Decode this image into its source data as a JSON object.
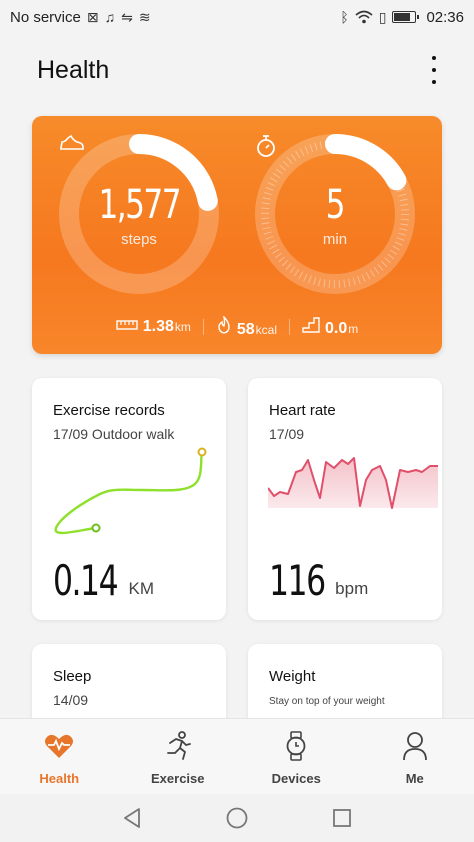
{
  "status_bar": {
    "carrier": "No service",
    "time": "02:36"
  },
  "header": {
    "title": "Health"
  },
  "activity": {
    "steps": {
      "value": "1,577",
      "unit": "steps",
      "goal_fraction": 0.22
    },
    "minutes": {
      "value": "5",
      "unit": "min",
      "goal_fraction": 0.17
    },
    "distance": {
      "value": "1.38",
      "unit": "km"
    },
    "calories": {
      "value": "58",
      "unit": "kcal"
    },
    "climb": {
      "value": "0.0",
      "unit": "m"
    }
  },
  "cards": {
    "exercise": {
      "title": "Exercise records",
      "subtitle": "17/09 Outdoor walk",
      "value": "0.14",
      "unit": "KM"
    },
    "heart_rate": {
      "title": "Heart rate",
      "subtitle": "17/09",
      "value": "116",
      "unit": "bpm"
    },
    "sleep": {
      "title": "Sleep",
      "subtitle": "14/09"
    },
    "weight": {
      "title": "Weight",
      "subtitle": "Stay on top of your weight"
    }
  },
  "bottom_nav": [
    {
      "label": "Health",
      "icon": "heart-icon",
      "active": true
    },
    {
      "label": "Exercise",
      "icon": "runner-icon",
      "active": false
    },
    {
      "label": "Devices",
      "icon": "watch-icon",
      "active": false
    },
    {
      "label": "Me",
      "icon": "person-icon",
      "active": false
    }
  ],
  "colors": {
    "accent": "#f6781f",
    "nav_active": "#e8762a",
    "route": "#7ed321",
    "heart_line": "#e0506a"
  }
}
